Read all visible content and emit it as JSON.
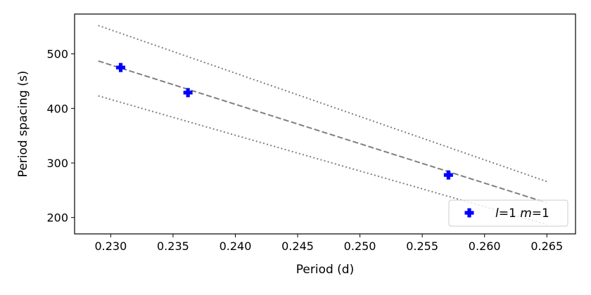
{
  "chart_data": {
    "type": "scatter",
    "xlabel": "Period (d)",
    "ylabel": "Period spacing (s)",
    "xlim": [
      0.2271,
      0.2673
    ],
    "ylim": [
      170,
      573
    ],
    "xticks": [
      0.23,
      0.235,
      0.24,
      0.245,
      0.25,
      0.255,
      0.26,
      0.265
    ],
    "xtick_labels": [
      "0.230",
      "0.235",
      "0.240",
      "0.245",
      "0.250",
      "0.255",
      "0.260",
      "0.265"
    ],
    "yticks": [
      200,
      300,
      400,
      500
    ],
    "ytick_labels": [
      "200",
      "300",
      "400",
      "500"
    ],
    "grid": false,
    "legend_position": "bottom-right",
    "series": [
      {
        "name_parts": [
          "l",
          "=1 ",
          "m",
          "=1"
        ],
        "marker": "plus-filled",
        "color": "#0000ff",
        "points": [
          {
            "x": 0.2308,
            "y": 475
          },
          {
            "x": 0.2362,
            "y": 429
          },
          {
            "x": 0.2571,
            "y": 278
          }
        ]
      }
    ],
    "fit_lines": [
      {
        "style": "dashed",
        "color": "#808080",
        "points": [
          [
            0.229,
            487
          ],
          [
            0.265,
            227
          ]
        ]
      },
      {
        "style": "dotted",
        "color": "#808080",
        "points": [
          [
            0.229,
            552
          ],
          [
            0.265,
            266
          ]
        ]
      },
      {
        "style": "dotted",
        "color": "#808080",
        "points": [
          [
            0.229,
            423
          ],
          [
            0.265,
            187
          ]
        ]
      }
    ]
  }
}
